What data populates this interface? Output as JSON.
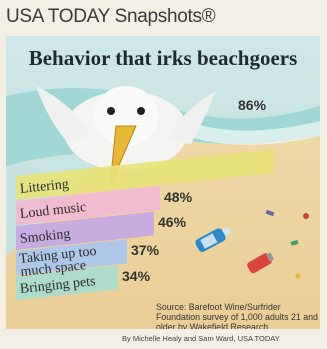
{
  "header": {
    "brand": "USA TODAY Snapshots®"
  },
  "chart_data": {
    "type": "bar",
    "title": "Behavior that irks beachgoers",
    "categories": [
      "Littering",
      "Loud music",
      "Smoking",
      "Taking up too much space",
      "Bringing pets"
    ],
    "label_lines": [
      [
        "Littering"
      ],
      [
        "Loud music"
      ],
      [
        "Smoking"
      ],
      [
        "Taking up too",
        "much space"
      ],
      [
        "Bringing pets"
      ]
    ],
    "values": [
      86,
      48,
      46,
      37,
      34
    ],
    "value_labels": [
      "86%",
      "48%",
      "46%",
      "37%",
      "34%"
    ],
    "xlim": [
      0,
      100
    ],
    "colors": [
      "#e7e37a",
      "#f3b9d2",
      "#c6a8e4",
      "#a8c7ee",
      "#a9dbd0"
    ]
  },
  "footer": {
    "source": "Source: Barefoot Wine/Surfrider Foundation survey of 1,000 adults 21 and older by Wakefield Research",
    "credit": "By Michelle Healy and Sam Ward, USA TODAY"
  }
}
